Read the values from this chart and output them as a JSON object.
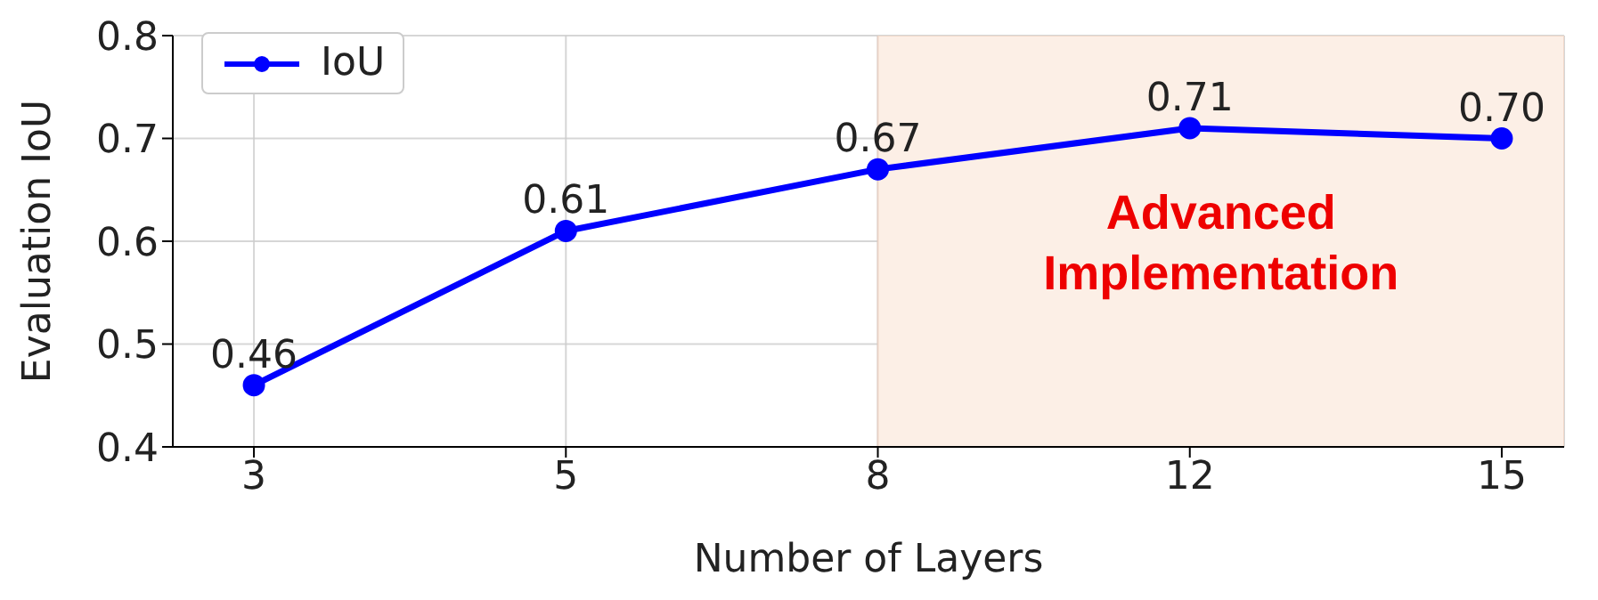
{
  "chart_data": {
    "type": "line",
    "categories": [
      "3",
      "5",
      "8",
      "12",
      "15"
    ],
    "series": [
      {
        "name": "IoU",
        "color": "#0000ff",
        "values": [
          0.46,
          0.61,
          0.67,
          0.71,
          0.7
        ],
        "value_labels": [
          "0.46",
          "0.61",
          "0.67",
          "0.71",
          "0.70"
        ]
      }
    ],
    "xlabel": "Number of Layers",
    "ylabel": "Evaluation IoU",
    "ylim": [
      0.4,
      0.8
    ],
    "yticks": [
      0.4,
      0.5,
      0.6,
      0.7,
      0.8
    ],
    "bands": [
      {
        "axis": "x",
        "from": "8",
        "to": "15",
        "label": "Advanced Implementation",
        "color": "#fcefe6"
      }
    ],
    "grid": true,
    "legend": "top left",
    "marker": "circle",
    "line_style": "solid"
  }
}
